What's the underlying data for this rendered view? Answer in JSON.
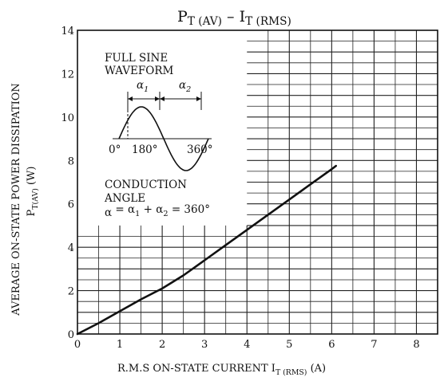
{
  "chart_data": {
    "type": "line",
    "title": {
      "main": "P",
      "main_sub": "T (AV)",
      "sep": "–",
      "right": "I",
      "right_sub": "T (RMS)"
    },
    "xlabel": {
      "text": "R.M.S ON-STATE CURRENT",
      "sym": "I",
      "sym_sub": "T (RMS)",
      "unit": "(A)"
    },
    "ylabel": {
      "text": "AVERAGE ON-STATE POWER DISSIPATION",
      "sym": "P",
      "sym_sub": "T(AV)",
      "unit": "(W)"
    },
    "xlim": [
      0,
      8.5
    ],
    "ylim": [
      0,
      14
    ],
    "x_ticks": [
      "0",
      "1",
      "2",
      "3",
      "4",
      "5",
      "6",
      "7",
      "8"
    ],
    "y_ticks": [
      "0",
      "2",
      "4",
      "6",
      "8",
      "10",
      "12",
      "14"
    ],
    "series": [
      {
        "x": [
          0,
          0.5,
          1.0,
          1.5,
          2.0,
          2.5,
          3.0,
          3.5,
          4.0,
          4.5,
          5.0,
          5.5,
          6.0,
          6.1
        ],
        "y": [
          0,
          0.5,
          1.05,
          1.6,
          2.1,
          2.7,
          3.4,
          4.1,
          4.8,
          5.5,
          6.2,
          6.9,
          7.6,
          7.75
        ]
      }
    ],
    "grid": true,
    "inset": {
      "line1": "FULL SINE",
      "line2": "WAVEFORM",
      "alpha1": "α1",
      "alpha2": "α2",
      "deg0": "0°",
      "deg180": "180°",
      "deg360": "360°",
      "cond1": "CONDUCTION",
      "cond2": "ANGLE",
      "formula": "α = α1 + α2 = 360°"
    }
  }
}
